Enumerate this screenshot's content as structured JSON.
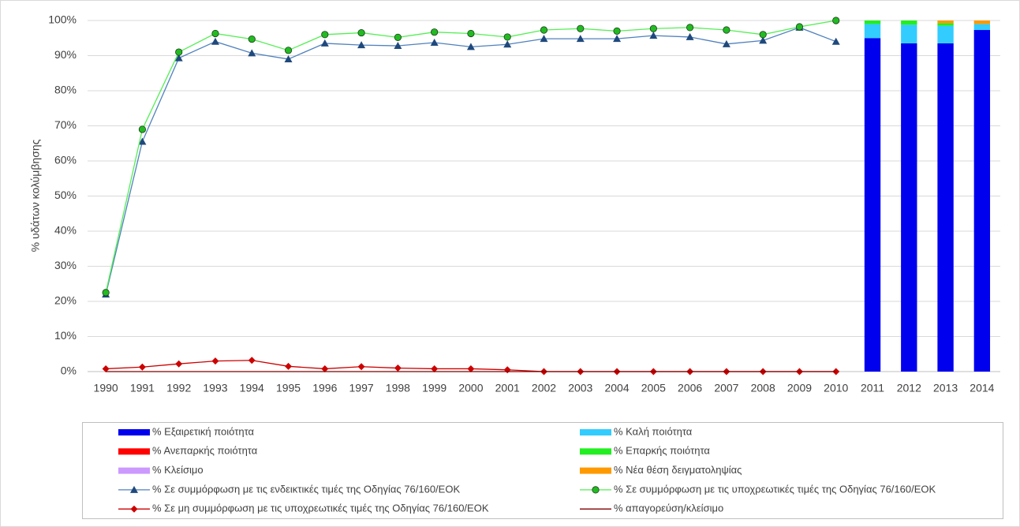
{
  "chart_data": {
    "type": "combo",
    "y_label": "% υδάτων κολύμβησης",
    "categories": [
      "1990",
      "1991",
      "1992",
      "1993",
      "1994",
      "1995",
      "1996",
      "1997",
      "1998",
      "1999",
      "2000",
      "2001",
      "2002",
      "2003",
      "2004",
      "2005",
      "2006",
      "2007",
      "2008",
      "2009",
      "2010",
      "2011",
      "2012",
      "2013",
      "2014"
    ],
    "ylim": [
      0,
      100
    ],
    "yticks": [
      {
        "value": 0,
        "label": "0%"
      },
      {
        "value": 10,
        "label": "10%"
      },
      {
        "value": 20,
        "label": "20%"
      },
      {
        "value": 30,
        "label": "30%"
      },
      {
        "value": 40,
        "label": "40%"
      },
      {
        "value": 50,
        "label": "50%"
      },
      {
        "value": 60,
        "label": "60%"
      },
      {
        "value": 70,
        "label": "70%"
      },
      {
        "value": 80,
        "label": "80%"
      },
      {
        "value": 90,
        "label": "90%"
      },
      {
        "value": 100,
        "label": "100%"
      }
    ],
    "grid": true,
    "series": [
      {
        "name": "% Εξαιρετική ποιότητα",
        "type": "bar",
        "color": "#0000ee",
        "values": [
          null,
          null,
          null,
          null,
          null,
          null,
          null,
          null,
          null,
          null,
          null,
          null,
          null,
          null,
          null,
          null,
          null,
          null,
          null,
          null,
          null,
          95,
          93.5,
          93.5,
          97.3
        ]
      },
      {
        "name": "% Καλή ποιότητα",
        "type": "bar",
        "color": "#33ccff",
        "values": [
          null,
          null,
          null,
          null,
          null,
          null,
          null,
          null,
          null,
          null,
          null,
          null,
          null,
          null,
          null,
          null,
          null,
          null,
          null,
          null,
          null,
          4,
          5.3,
          5,
          1.7
        ]
      },
      {
        "name": "% Ανεπαρκής ποιότητα",
        "type": "bar",
        "color": "#ff0000",
        "values": [
          null,
          null,
          null,
          null,
          null,
          null,
          null,
          null,
          null,
          null,
          null,
          null,
          null,
          null,
          null,
          null,
          null,
          null,
          null,
          null,
          null,
          0,
          0,
          0,
          0
        ]
      },
      {
        "name": "% Επαρκής ποιότητα",
        "type": "bar",
        "color": "#22ee22",
        "values": [
          null,
          null,
          null,
          null,
          null,
          null,
          null,
          null,
          null,
          null,
          null,
          null,
          null,
          null,
          null,
          null,
          null,
          null,
          null,
          null,
          null,
          1,
          1.2,
          0.7,
          0
        ]
      },
      {
        "name": "% Κλείσιμο",
        "type": "bar",
        "color": "#cc99ff",
        "values": [
          null,
          null,
          null,
          null,
          null,
          null,
          null,
          null,
          null,
          null,
          null,
          null,
          null,
          null,
          null,
          null,
          null,
          null,
          null,
          null,
          null,
          0,
          0,
          0,
          0
        ]
      },
      {
        "name": "% Νέα θέση δειγματοληψίας",
        "type": "bar",
        "color": "#ff9900",
        "values": [
          null,
          null,
          null,
          null,
          null,
          null,
          null,
          null,
          null,
          null,
          null,
          null,
          null,
          null,
          null,
          null,
          null,
          null,
          null,
          null,
          null,
          0,
          0,
          0.8,
          1
        ]
      },
      {
        "name": "% Σε συμμόρφωση με τις ενδεικτικές τιμές της Οδηγίας 76/160/ΕΟΚ",
        "type": "line",
        "marker": "triangle",
        "color": "#4f81bd",
        "marker_color": "#1f497d",
        "values": [
          22,
          65.5,
          89.3,
          94,
          90.7,
          89,
          93.5,
          93,
          92.8,
          93.7,
          92.5,
          93.2,
          94.8,
          94.8,
          94.8,
          95.7,
          95.3,
          93.3,
          94.3,
          98,
          94,
          null,
          null,
          null,
          null
        ]
      },
      {
        "name": "% Σε συμμόρφωση με τις υποχρεωτικές τιμές της Οδηγίας 76/160/ΕΟΚ",
        "type": "line",
        "marker": "circle",
        "color": "#55ee55",
        "marker_color": "#22bb22",
        "values": [
          22.5,
          69,
          91,
          96.3,
          94.7,
          91.5,
          96,
          96.5,
          95.2,
          96.7,
          96.3,
          95.3,
          97.3,
          97.7,
          97,
          97.7,
          98,
          97.3,
          96,
          98.2,
          100,
          null,
          null,
          null,
          null
        ]
      },
      {
        "name": "% Σε μη συμμόρφωση με τις υποχρεωτικές τιμές της Οδηγίας 76/160/ΕΟΚ",
        "type": "line",
        "marker": "diamond",
        "color": "#cc0000",
        "marker_color": "#cc0000",
        "values": [
          0.8,
          1.3,
          2.2,
          3,
          3.2,
          1.5,
          0.8,
          1.4,
          1,
          0.8,
          0.8,
          0.5,
          0,
          0,
          0,
          0,
          0,
          0,
          0,
          0,
          0,
          null,
          null,
          null,
          null
        ]
      },
      {
        "name": "% απαγορεύση/κλείσιμο",
        "type": "line",
        "marker": "none",
        "color": "#7f0000",
        "marker_color": "#7f0000",
        "values": [
          0,
          0,
          0,
          0,
          0,
          0,
          0,
          0,
          0,
          0,
          0,
          0,
          0,
          0,
          0,
          0,
          0,
          0,
          0,
          0,
          0,
          null,
          null,
          null,
          null
        ]
      }
    ]
  }
}
